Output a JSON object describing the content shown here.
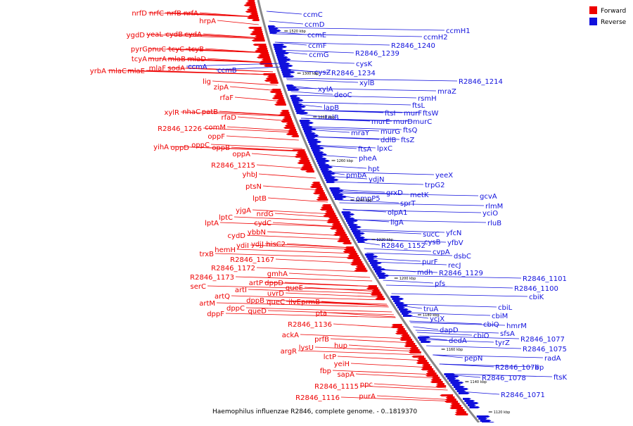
{
  "colors": {
    "forward": "#ee0000",
    "reverse": "#1111dd",
    "backbone": "#888888"
  },
  "legend": {
    "forward": "Forward",
    "reverse": "Reverse"
  },
  "caption": "Haemophilus influenzae R2846, complete genome. - 0..1819370",
  "ticks": [
    "1520 kbp",
    "1300 kbp",
    "1280 kbp",
    "1260 kbp",
    "1240 kbp",
    "1220 kbp",
    "1200 kbp",
    "1180 kbp",
    "1160 kbp",
    "1140 kbp",
    "1120 kbp"
  ],
  "forward_genes": [
    "nrfD",
    "nrfC",
    "nrfB",
    "nrfA",
    "hrpA",
    "ygdD",
    "yeaL",
    "cydB",
    "cydA",
    "pyrG",
    "pnuC",
    "tcyC",
    "tcyB",
    "tcyA",
    "murA",
    "mlaB",
    "mlaD",
    "yrbA",
    "mlaC",
    "mlaE",
    "mlaF",
    "sodA",
    "lig",
    "zipA",
    "rfaF",
    "xylR",
    "nhaC",
    "patB",
    "rfaD",
    "R2846_1226",
    "comM",
    "oppF",
    "yihA",
    "oppD",
    "oppC",
    "oppB",
    "oppA",
    "R2846_1215",
    "yhbJ",
    "ptsN",
    "lptB",
    "lptC",
    "yjgA",
    "lptA",
    "nrdG",
    "cydC",
    "ybbN",
    "cydD",
    "trxB",
    "hemH",
    "ydiI",
    "ydjJ",
    "hisC2",
    "R2846_1167",
    "R2846_1172",
    "gmhA",
    "R2846_1173",
    "artP",
    "dppD",
    "serC",
    "artI",
    "uvrD",
    "queE",
    "artQ",
    "dppB",
    "artM",
    "queC",
    "ilvE",
    "prmB",
    "dppF",
    "dppC",
    "queD",
    "pta",
    "R2846_1136",
    "ackA",
    "prfB",
    "hup",
    "argR",
    "lysU",
    "lctP",
    "yeiH",
    "fbp",
    "sapA",
    "R2846_1115",
    "ppc",
    "R2846_1116",
    "purA"
  ],
  "reverse_genes": [
    "ccmC",
    "ccmD",
    "ccmH1",
    "ccmE",
    "ccmH2",
    "ccmF",
    "R2846_1240",
    "ccmG",
    "R2846_1239",
    "ccmA",
    "ccmB",
    "cysK",
    "cysZ",
    "R2846_1234",
    "xylB",
    "xylA",
    "R2846_1214",
    "deoC",
    "mraZ",
    "rsmH",
    "ftsL",
    "lapB",
    "ftsI",
    "murF",
    "ftsW",
    "talB",
    "murE",
    "murD",
    "murC",
    "mraY",
    "murG",
    "ftsQ",
    "ddlB",
    "ftsZ",
    "ftsA",
    "lpxC",
    "pheA",
    "hpt",
    "pmbA",
    "ydjN",
    "yeeX",
    "trpG2",
    "grxD",
    "metK",
    "ompP5",
    "sprT",
    "gcvA",
    "rlmM",
    "olpA1",
    "yciO",
    "ligA",
    "rluB",
    "sucC",
    "yfcN",
    "cysB",
    "R2846_1152",
    "yfbV",
    "cvpA",
    "dsbC",
    "purF",
    "recJ",
    "mdh",
    "R2846_1129",
    "pfs",
    "R2846_1101",
    "cbiK",
    "R2846_1100",
    "truA",
    "cbiL",
    "cbiM",
    "ycjX",
    "hmrM",
    "cbiQ",
    "dapD",
    "cbiO",
    "sfsA",
    "dedA",
    "tyrZ",
    "R2846_1077",
    "R2846_1075",
    "radA",
    "pepN",
    "R2846_1076",
    "lrp",
    "R2846_1078",
    "ftsK",
    "R2846_1071"
  ]
}
